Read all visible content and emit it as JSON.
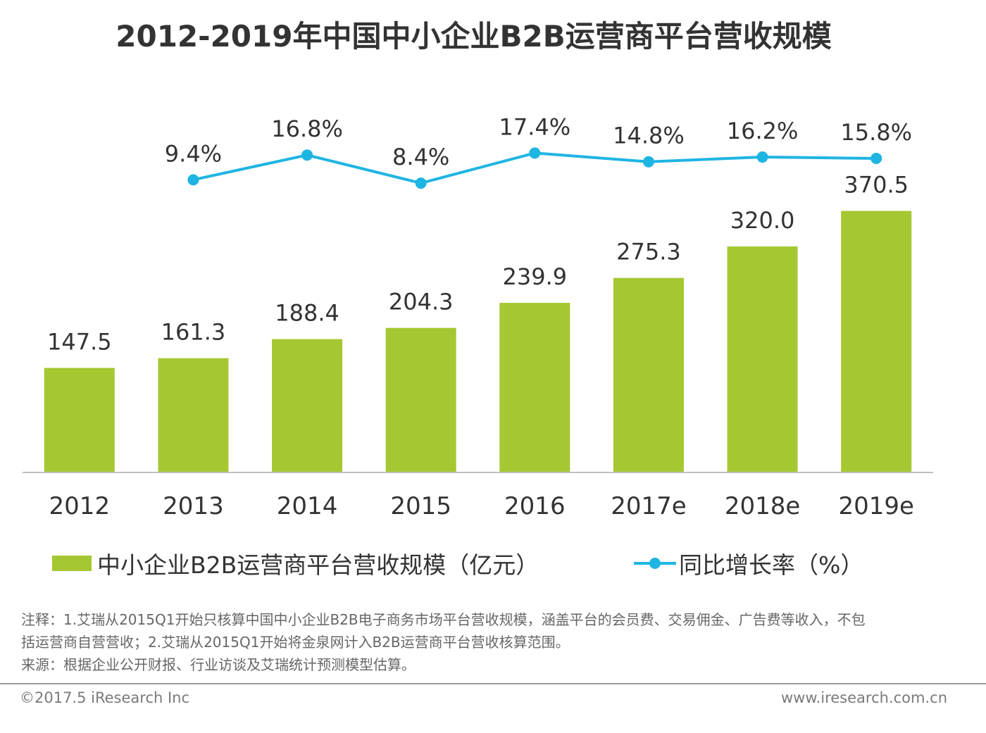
{
  "title": "2012-2019年中国中小企业B2B运营商平台营收规模",
  "chart_data": {
    "type": "bar",
    "categories": [
      "2012",
      "2013",
      "2014",
      "2015",
      "2016",
      "2017e",
      "2018e",
      "2019e"
    ],
    "series": [
      {
        "name": "中小企业B2B运营商平台营收规模（亿元）",
        "type": "bar",
        "values": [
          147.5,
          161.3,
          188.4,
          204.3,
          239.9,
          275.3,
          320.0,
          370.5
        ],
        "labels": [
          "147.5",
          "161.3",
          "188.4",
          "204.3",
          "239.9",
          "275.3",
          "320.0",
          "370.5"
        ],
        "color": "#a5c832"
      },
      {
        "name": "同比增长率（%）",
        "type": "line",
        "values": [
          null,
          9.4,
          16.8,
          8.4,
          17.4,
          14.8,
          16.2,
          15.8
        ],
        "labels": [
          "",
          "9.4%",
          "16.8%",
          "8.4%",
          "17.4%",
          "14.8%",
          "16.2%",
          "15.8%"
        ],
        "color": "#1fb5e3"
      }
    ],
    "ylim": [
      0,
      400
    ],
    "grid": false,
    "legend": "bottom"
  },
  "legend": {
    "bar_label": "中小企业B2B运营商平台营收规模（亿元）",
    "line_label": "同比增长率（%）"
  },
  "notes": {
    "line1": "注释：1.艾瑞从2015Q1开始只核算中国中小企业B2B电子商务市场平台营收规模，涵盖平台的会员费、交易佣金、广告费等收入，不包",
    "line2": "括运营商自营营收；2.艾瑞从2015Q1开始将金泉网计入B2B运营商平台营收核算范围。",
    "line3": "来源：根据企业公开财报、行业访谈及艾瑞统计预测模型估算。"
  },
  "footer": {
    "copyright": "©2017.5 iResearch Inc",
    "website": "www.iresearch.com.cn"
  },
  "colors": {
    "bar": "#a5c832",
    "line": "#1fb5e3",
    "text": "#333333"
  }
}
